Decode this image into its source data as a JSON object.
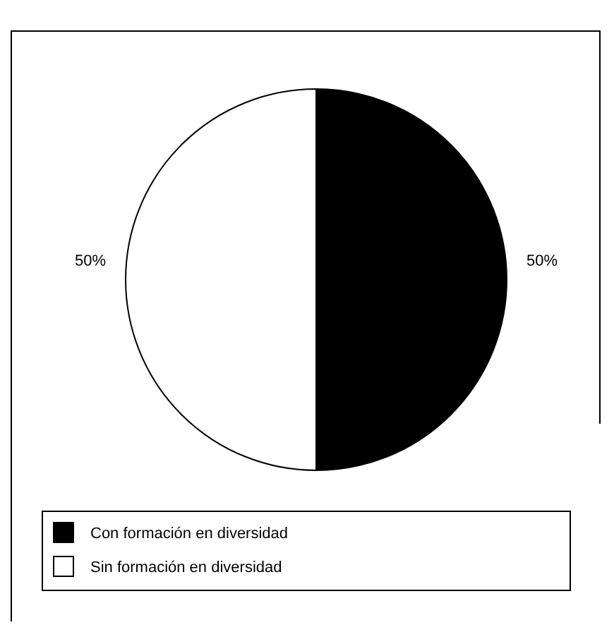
{
  "chart_data": {
    "type": "pie",
    "categories": [
      "Con formación en diversidad",
      "Sin formación en diversidad"
    ],
    "values": [
      50,
      50
    ],
    "colors": [
      "#000000",
      "#ffffff"
    ],
    "value_labels": [
      "50%",
      "50%"
    ],
    "legend": "bottom"
  }
}
